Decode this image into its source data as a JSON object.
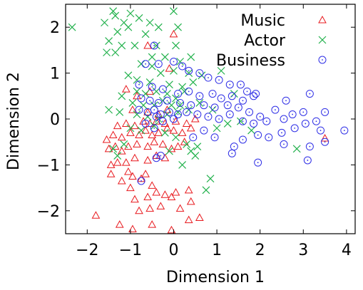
{
  "chart_data": {
    "type": "scatter",
    "xlabel": "Dimension 1",
    "ylabel": "Dimension 2",
    "xlim": [
      -2.5,
      4.2
    ],
    "ylim": [
      -2.5,
      2.5
    ],
    "xticks": [
      -2,
      -1,
      0,
      1,
      2,
      3,
      4
    ],
    "xtick_labels": [
      "−2",
      "−1",
      "0",
      "1",
      "2",
      "3",
      "4"
    ],
    "yticks": [
      -2,
      -1,
      0,
      1,
      2
    ],
    "ytick_labels": [
      "−2",
      "−1",
      "0",
      "1",
      "2"
    ],
    "grid": false,
    "legend_position": "top-right",
    "series": [
      {
        "name": "Music",
        "marker": "triangle",
        "color": "#e8191e",
        "points": [
          [
            -1.8,
            -2.1
          ],
          [
            -1.25,
            -2.3
          ],
          [
            -0.95,
            -2.4
          ],
          [
            -0.5,
            -2.3
          ],
          [
            -0.05,
            -2.42
          ],
          [
            0.35,
            -2.2
          ],
          [
            0.6,
            -2.15
          ],
          [
            -0.8,
            -2.0
          ],
          [
            -0.55,
            -1.95
          ],
          [
            -0.3,
            -1.9
          ],
          [
            -0.05,
            -1.7
          ],
          [
            0.15,
            -1.95
          ],
          [
            0.4,
            -1.8
          ],
          [
            -0.9,
            -1.75
          ],
          [
            -0.6,
            -1.7
          ],
          [
            -0.4,
            -1.6
          ],
          [
            -0.2,
            -1.65
          ],
          [
            -1.0,
            -1.5
          ],
          [
            -1.2,
            -1.35
          ],
          [
            -0.75,
            -1.3
          ],
          [
            -0.5,
            -1.45
          ],
          [
            0.05,
            -1.6
          ],
          [
            0.35,
            -1.55
          ],
          [
            -0.95,
            -1.25
          ],
          [
            -1.45,
            -1.2
          ],
          [
            -1.05,
            -1.15
          ],
          [
            -0.65,
            -1.2
          ],
          [
            -1.45,
            -1.0
          ],
          [
            -1.3,
            -0.95
          ],
          [
            -1.1,
            -0.95
          ],
          [
            -0.9,
            -0.85
          ],
          [
            -0.6,
            -0.9
          ],
          [
            -0.4,
            -0.8
          ],
          [
            -0.2,
            -0.85
          ],
          [
            -1.5,
            -0.65
          ],
          [
            -1.35,
            -0.6
          ],
          [
            -1.2,
            -0.7
          ],
          [
            -1.05,
            -0.6
          ],
          [
            -0.85,
            -0.55
          ],
          [
            -0.6,
            -0.6
          ],
          [
            -0.45,
            -0.5
          ],
          [
            -0.25,
            -0.55
          ],
          [
            -0.05,
            -0.65
          ],
          [
            0.1,
            -0.6
          ],
          [
            0.25,
            -0.5
          ],
          [
            -1.55,
            -0.45
          ],
          [
            -1.4,
            -0.35
          ],
          [
            -1.2,
            -0.4
          ],
          [
            -1.0,
            -0.3
          ],
          [
            -0.8,
            -0.35
          ],
          [
            -0.65,
            -0.25
          ],
          [
            -0.5,
            -0.35
          ],
          [
            -0.35,
            -0.3
          ],
          [
            -0.15,
            -0.2
          ],
          [
            0.0,
            -0.25
          ],
          [
            0.2,
            -0.3
          ],
          [
            0.4,
            -0.2
          ],
          [
            -1.3,
            -0.15
          ],
          [
            -1.1,
            -0.1
          ],
          [
            -0.9,
            -0.15
          ],
          [
            -0.7,
            -0.05
          ],
          [
            -0.55,
            -0.1
          ],
          [
            -0.4,
            -0.05
          ],
          [
            -0.2,
            -0.1
          ],
          [
            0.05,
            -0.05
          ],
          [
            0.3,
            -0.1
          ],
          [
            0.5,
            0.0
          ],
          [
            -0.6,
            0.15
          ],
          [
            -0.35,
            0.1
          ],
          [
            -0.15,
            0.2
          ],
          [
            -0.95,
            0.2
          ],
          [
            -0.55,
            0.6
          ],
          [
            -0.85,
            0.5
          ],
          [
            -1.1,
            0.65
          ],
          [
            -0.6,
            1.6
          ],
          [
            0.0,
            1.85
          ],
          [
            3.5,
            -0.42
          ],
          [
            -0.1,
            1.1
          ]
        ]
      },
      {
        "name": "Actor",
        "marker": "cross",
        "color": "#22b14c",
        "points": [
          [
            -2.35,
            2.0
          ],
          [
            -1.4,
            2.35
          ],
          [
            -1.35,
            2.25
          ],
          [
            -1.0,
            2.3
          ],
          [
            0.0,
            2.35
          ],
          [
            -1.6,
            2.1
          ],
          [
            -1.15,
            2.1
          ],
          [
            -0.8,
            2.2
          ],
          [
            -0.55,
            2.1
          ],
          [
            -0.35,
            2.0
          ],
          [
            0.1,
            2.0
          ],
          [
            -1.3,
            1.9
          ],
          [
            -1.05,
            2.0
          ],
          [
            -0.65,
            1.85
          ],
          [
            -1.5,
            1.7
          ],
          [
            -1.2,
            1.6
          ],
          [
            -0.9,
            1.6
          ],
          [
            -0.4,
            1.6
          ],
          [
            0.05,
            1.6
          ],
          [
            -1.55,
            1.45
          ],
          [
            -1.35,
            1.45
          ],
          [
            -0.5,
            1.35
          ],
          [
            -0.2,
            1.35
          ],
          [
            0.15,
            1.25
          ],
          [
            0.4,
            1.35
          ],
          [
            -0.75,
            1.2
          ],
          [
            -0.5,
            1.15
          ],
          [
            -0.3,
            1.0
          ],
          [
            0.0,
            1.05
          ],
          [
            0.35,
            1.0
          ],
          [
            0.65,
            0.95
          ],
          [
            -1.05,
            0.95
          ],
          [
            -0.85,
            0.85
          ],
          [
            -0.55,
            0.8
          ],
          [
            -0.1,
            0.75
          ],
          [
            0.2,
            0.7
          ],
          [
            0.45,
            0.8
          ],
          [
            -1.2,
            0.5
          ],
          [
            -0.85,
            0.6
          ],
          [
            -0.65,
            0.55
          ],
          [
            -0.4,
            0.6
          ],
          [
            -0.15,
            0.55
          ],
          [
            0.05,
            0.45
          ],
          [
            0.25,
            0.6
          ],
          [
            -0.95,
            0.35
          ],
          [
            -0.7,
            0.3
          ],
          [
            -0.45,
            0.3
          ],
          [
            -0.25,
            0.4
          ],
          [
            -0.05,
            0.3
          ],
          [
            0.15,
            0.3
          ],
          [
            -1.5,
            0.2
          ],
          [
            -1.25,
            0.15
          ],
          [
            -0.85,
            0.1
          ],
          [
            -0.6,
            0.05
          ],
          [
            -0.35,
            0.0
          ],
          [
            -0.15,
            0.1
          ],
          [
            0.1,
            0.15
          ],
          [
            0.35,
            0.2
          ],
          [
            0.6,
            0.35
          ],
          [
            0.9,
            0.2
          ],
          [
            -1.0,
            -0.2
          ],
          [
            -0.75,
            -0.25
          ],
          [
            -0.45,
            -0.15
          ],
          [
            -0.2,
            -0.3
          ],
          [
            0.05,
            -0.4
          ],
          [
            0.3,
            -0.55
          ],
          [
            0.55,
            -0.6
          ],
          [
            1.0,
            -0.2
          ],
          [
            1.25,
            -0.1
          ],
          [
            1.55,
            -0.05
          ],
          [
            1.8,
            -0.25
          ],
          [
            -0.1,
            -0.7
          ],
          [
            0.2,
            -1.0
          ],
          [
            0.4,
            -0.7
          ],
          [
            1.4,
            0.55
          ],
          [
            1.1,
            1.05
          ],
          [
            2.85,
            -0.65
          ],
          [
            0.85,
            -1.3
          ],
          [
            0.75,
            -1.55
          ],
          [
            0.5,
            -0.8
          ],
          [
            -1.4,
            -0.65
          ],
          [
            -1.3,
            -0.8
          ],
          [
            -1.15,
            -0.55
          ]
        ]
      },
      {
        "name": "Business",
        "marker": "circle",
        "color": "#2f2fe6",
        "points": [
          [
            -0.45,
            1.6
          ],
          [
            -0.65,
            1.2
          ],
          [
            -0.35,
            1.2
          ],
          [
            0.0,
            1.25
          ],
          [
            0.2,
            1.15
          ],
          [
            0.35,
            1.05
          ],
          [
            0.6,
            1.0
          ],
          [
            0.8,
            0.9
          ],
          [
            1.05,
            0.85
          ],
          [
            1.3,
            0.75
          ],
          [
            1.55,
            0.75
          ],
          [
            1.7,
            0.6
          ],
          [
            1.9,
            0.55
          ],
          [
            -0.8,
            0.75
          ],
          [
            -0.5,
            0.7
          ],
          [
            -0.25,
            0.65
          ],
          [
            0.1,
            0.55
          ],
          [
            0.35,
            0.6
          ],
          [
            0.6,
            0.5
          ],
          [
            0.9,
            0.55
          ],
          [
            1.1,
            0.45
          ],
          [
            1.35,
            0.5
          ],
          [
            1.6,
            0.4
          ],
          [
            1.85,
            0.5
          ],
          [
            -0.75,
            0.45
          ],
          [
            -0.55,
            0.4
          ],
          [
            -0.35,
            0.35
          ],
          [
            -0.15,
            0.4
          ],
          [
            0.15,
            0.35
          ],
          [
            0.4,
            0.3
          ],
          [
            0.7,
            0.3
          ],
          [
            0.95,
            0.25
          ],
          [
            1.25,
            0.3
          ],
          [
            1.5,
            0.25
          ],
          [
            1.75,
            0.15
          ],
          [
            2.0,
            0.05
          ],
          [
            -0.8,
            0.2
          ],
          [
            -0.6,
            0.15
          ],
          [
            -0.45,
            0.2
          ],
          [
            -0.3,
            0.1
          ],
          [
            -0.1,
            0.15
          ],
          [
            0.1,
            0.1
          ],
          [
            0.3,
            0.15
          ],
          [
            0.55,
            0.1
          ],
          [
            0.8,
            0.05
          ],
          [
            1.05,
            0.0
          ],
          [
            1.3,
            0.1
          ],
          [
            1.6,
            -0.05
          ],
          [
            1.85,
            -0.1
          ],
          [
            2.15,
            -0.05
          ],
          [
            2.35,
            0.2
          ],
          [
            2.55,
            0.0
          ],
          [
            2.75,
            0.1
          ],
          [
            3.0,
            0.15
          ],
          [
            3.3,
            -0.05
          ],
          [
            3.5,
            0.15
          ],
          [
            3.15,
            0.55
          ],
          [
            2.6,
            0.4
          ],
          [
            3.95,
            -0.25
          ],
          [
            3.4,
            -0.25
          ],
          [
            3.05,
            -0.1
          ],
          [
            2.8,
            -0.2
          ],
          [
            2.5,
            -0.3
          ],
          [
            2.2,
            -0.4
          ],
          [
            1.95,
            -0.35
          ],
          [
            1.6,
            -0.45
          ],
          [
            1.4,
            -0.6
          ],
          [
            1.35,
            -0.75
          ],
          [
            1.95,
            -0.95
          ],
          [
            2.55,
            -0.55
          ],
          [
            3.5,
            -0.5
          ],
          [
            3.15,
            -0.6
          ],
          [
            3.1,
            -0.9
          ],
          [
            0.7,
            -0.25
          ],
          [
            0.45,
            -0.4
          ],
          [
            0.95,
            -0.4
          ],
          [
            -0.3,
            -0.8
          ],
          [
            -0.4,
            -0.85
          ],
          [
            -0.75,
            -1.35
          ],
          [
            -0.4,
            0.05
          ],
          [
            -0.25,
            -0.05
          ],
          [
            0.0,
            0.0
          ],
          [
            -0.65,
            -0.1
          ],
          [
            -0.45,
            -0.2
          ]
        ]
      }
    ]
  }
}
